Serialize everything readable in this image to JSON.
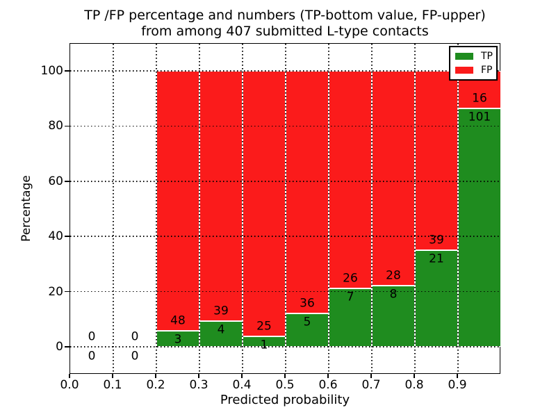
{
  "figure": {
    "title_line1": "TP /FP percentage and numbers (TP-bottom value, FP-upper)",
    "title_line2": "from among 407 submitted L-type contacts"
  },
  "chart_data": {
    "type": "bar",
    "subtype": "stacked-percentage-histogram",
    "title": "TP /FP percentage and numbers (TP-bottom value, FP-upper)\nfrom among 407 submitted L-type contacts",
    "xlabel": "Predicted probability",
    "ylabel": "Percentage",
    "xlim": [
      0.0,
      1.0
    ],
    "ylim": [
      -10,
      110
    ],
    "grid": "dotted",
    "legend_position": "upper right",
    "bin_width": 0.1,
    "total_contacts": 407,
    "colors": {
      "tp": "#1f8c1f",
      "fp": "#fb1b1b",
      "bar_edge": "#ffffff",
      "text": "#000000"
    },
    "xticks": [
      "0.0",
      "0.1",
      "0.2",
      "0.3",
      "0.4",
      "0.5",
      "0.6",
      "0.7",
      "0.8",
      "0.9"
    ],
    "yticks": [
      0,
      20,
      40,
      60,
      80,
      100
    ],
    "legend": [
      {
        "label": "TP",
        "color_key": "tp"
      },
      {
        "label": "FP",
        "color_key": "fp"
      }
    ],
    "bins": [
      {
        "start": 0.0,
        "tp": 0,
        "fp": 0,
        "tp_pct": 0
      },
      {
        "start": 0.1,
        "tp": 0,
        "fp": 0,
        "tp_pct": 0
      },
      {
        "start": 0.2,
        "tp": 3,
        "fp": 48,
        "tp_pct": 5.9
      },
      {
        "start": 0.3,
        "tp": 4,
        "fp": 39,
        "tp_pct": 9.3
      },
      {
        "start": 0.4,
        "tp": 1,
        "fp": 25,
        "tp_pct": 3.8
      },
      {
        "start": 0.5,
        "tp": 5,
        "fp": 36,
        "tp_pct": 12.2
      },
      {
        "start": 0.6,
        "tp": 7,
        "fp": 26,
        "tp_pct": 21.2
      },
      {
        "start": 0.7,
        "tp": 8,
        "fp": 28,
        "tp_pct": 22.2
      },
      {
        "start": 0.8,
        "tp": 21,
        "fp": 39,
        "tp_pct": 35.0
      },
      {
        "start": 0.9,
        "tp": 101,
        "fp": 16,
        "tp_pct": 86.3
      }
    ]
  }
}
